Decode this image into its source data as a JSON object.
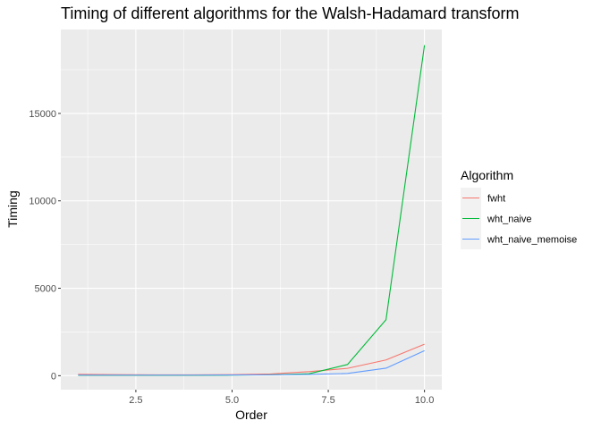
{
  "chart_data": {
    "type": "line",
    "title": "Timing of different algorithms for the Walsh-Hadamard transform",
    "xlabel": "Order",
    "ylabel": "Timing",
    "xlim": [
      0.55,
      10.45
    ],
    "ylim": [
      -800,
      19800
    ],
    "x_ticks": [
      2.5,
      5.0,
      7.5,
      10.0
    ],
    "x_tick_labels": [
      "2.5",
      "5.0",
      "7.5",
      "10.0"
    ],
    "y_ticks": [
      0,
      5000,
      10000,
      15000
    ],
    "y_tick_labels": [
      "0",
      "5000",
      "10000",
      "15000"
    ],
    "x": [
      1,
      2,
      3,
      4,
      5,
      6,
      7,
      8,
      9,
      10
    ],
    "legend": {
      "title": "Algorithm",
      "position": "right"
    },
    "grid": true,
    "background": "#ebebeb",
    "series": [
      {
        "name": "fwht",
        "color": "#f8766d",
        "values": [
          80,
          60,
          50,
          50,
          60,
          100,
          230,
          420,
          900,
          1800
        ]
      },
      {
        "name": "wht_naive",
        "color": "#00ba38",
        "values": [
          20,
          20,
          20,
          20,
          30,
          50,
          110,
          640,
          3200,
          18900
        ]
      },
      {
        "name": "wht_naive_memoise",
        "color": "#619cff",
        "values": [
          30,
          30,
          30,
          30,
          40,
          50,
          70,
          130,
          430,
          1430
        ]
      }
    ]
  }
}
